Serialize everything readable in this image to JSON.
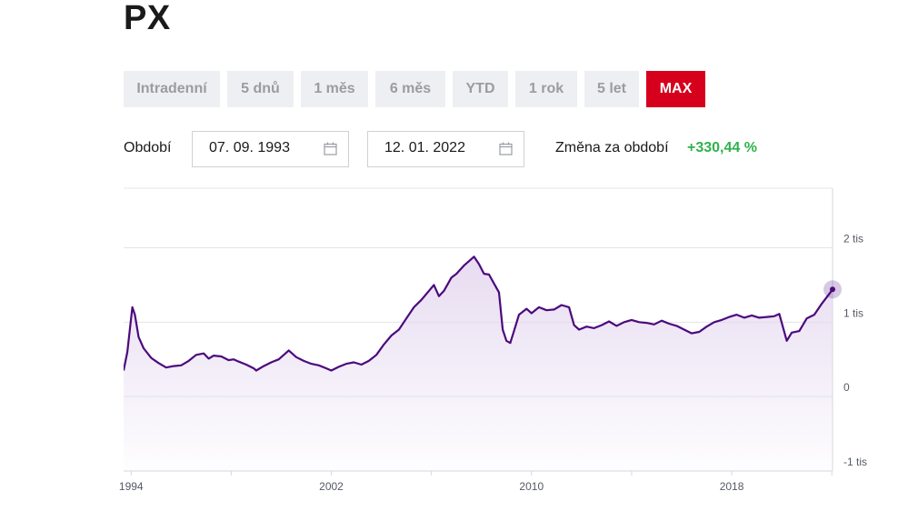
{
  "header": {
    "title": "PX"
  },
  "periods": [
    {
      "label": "Intradenní",
      "active": false
    },
    {
      "label": "5 dnů",
      "active": false
    },
    {
      "label": "1 měs",
      "active": false
    },
    {
      "label": "6 měs",
      "active": false
    },
    {
      "label": "YTD",
      "active": false
    },
    {
      "label": "1 rok",
      "active": false
    },
    {
      "label": "5 let",
      "active": false
    },
    {
      "label": "MAX",
      "active": true
    }
  ],
  "range": {
    "label": "Období",
    "from": "07. 09. 1993",
    "to": "12. 01. 2022",
    "change_label": "Změna za období",
    "change_value": "+330,44 %"
  },
  "colors": {
    "active_period": "#d6001c",
    "line": "#4b0a7d",
    "area": "#e6daf0",
    "positive_change": "#2fb24c"
  },
  "icons": {
    "date_picker": "calendar-icon"
  },
  "chart_data": {
    "type": "area",
    "title": "",
    "xlabel": "",
    "ylabel": "",
    "x_ticks": [
      "1994",
      "2002",
      "2010",
      "2018"
    ],
    "y_ticks": [
      "-1 tis",
      "0",
      "1 tis",
      "2 tis"
    ],
    "y_tick_values": [
      -1000,
      0,
      1000,
      2000
    ],
    "ylim": [
      -1000,
      2800
    ],
    "xlim": [
      1993.7,
      2022.03
    ],
    "grid": true,
    "series": [
      {
        "points": [
          [
            1993.7,
            350
          ],
          [
            1993.85,
            600
          ],
          [
            1994.05,
            1200
          ],
          [
            1994.15,
            1100
          ],
          [
            1994.3,
            800
          ],
          [
            1994.5,
            650
          ],
          [
            1994.8,
            520
          ],
          [
            1995.1,
            450
          ],
          [
            1995.4,
            390
          ],
          [
            1995.7,
            410
          ],
          [
            1996.0,
            420
          ],
          [
            1996.3,
            480
          ],
          [
            1996.6,
            560
          ],
          [
            1996.9,
            580
          ],
          [
            1997.1,
            510
          ],
          [
            1997.3,
            550
          ],
          [
            1997.6,
            540
          ],
          [
            1997.9,
            490
          ],
          [
            1998.1,
            500
          ],
          [
            1998.3,
            470
          ],
          [
            1998.6,
            430
          ],
          [
            1998.9,
            380
          ],
          [
            1999.0,
            350
          ],
          [
            1999.3,
            410
          ],
          [
            1999.6,
            460
          ],
          [
            1999.9,
            500
          ],
          [
            2000.1,
            560
          ],
          [
            2000.3,
            620
          ],
          [
            2000.6,
            530
          ],
          [
            2000.9,
            480
          ],
          [
            2001.2,
            440
          ],
          [
            2001.5,
            420
          ],
          [
            2001.8,
            380
          ],
          [
            2002.0,
            350
          ],
          [
            2002.3,
            400
          ],
          [
            2002.6,
            440
          ],
          [
            2002.9,
            460
          ],
          [
            2003.2,
            430
          ],
          [
            2003.5,
            480
          ],
          [
            2003.8,
            560
          ],
          [
            2004.1,
            700
          ],
          [
            2004.4,
            820
          ],
          [
            2004.7,
            900
          ],
          [
            2005.0,
            1050
          ],
          [
            2005.3,
            1200
          ],
          [
            2005.6,
            1300
          ],
          [
            2005.9,
            1420
          ],
          [
            2006.1,
            1500
          ],
          [
            2006.3,
            1350
          ],
          [
            2006.5,
            1420
          ],
          [
            2006.8,
            1600
          ],
          [
            2007.0,
            1650
          ],
          [
            2007.3,
            1760
          ],
          [
            2007.5,
            1820
          ],
          [
            2007.7,
            1880
          ],
          [
            2007.9,
            1780
          ],
          [
            2008.1,
            1650
          ],
          [
            2008.3,
            1640
          ],
          [
            2008.5,
            1520
          ],
          [
            2008.7,
            1400
          ],
          [
            2008.85,
            900
          ],
          [
            2009.0,
            750
          ],
          [
            2009.15,
            720
          ],
          [
            2009.3,
            880
          ],
          [
            2009.5,
            1100
          ],
          [
            2009.8,
            1180
          ],
          [
            2010.0,
            1120
          ],
          [
            2010.3,
            1200
          ],
          [
            2010.6,
            1160
          ],
          [
            2010.9,
            1170
          ],
          [
            2011.2,
            1230
          ],
          [
            2011.5,
            1200
          ],
          [
            2011.7,
            960
          ],
          [
            2011.9,
            900
          ],
          [
            2012.2,
            940
          ],
          [
            2012.5,
            920
          ],
          [
            2012.8,
            960
          ],
          [
            2013.1,
            1010
          ],
          [
            2013.4,
            950
          ],
          [
            2013.7,
            1000
          ],
          [
            2014.0,
            1030
          ],
          [
            2014.3,
            1000
          ],
          [
            2014.6,
            990
          ],
          [
            2014.9,
            970
          ],
          [
            2015.2,
            1020
          ],
          [
            2015.5,
            980
          ],
          [
            2015.8,
            950
          ],
          [
            2016.1,
            900
          ],
          [
            2016.4,
            850
          ],
          [
            2016.7,
            870
          ],
          [
            2017.0,
            940
          ],
          [
            2017.3,
            1000
          ],
          [
            2017.6,
            1030
          ],
          [
            2017.9,
            1070
          ],
          [
            2018.2,
            1100
          ],
          [
            2018.5,
            1060
          ],
          [
            2018.8,
            1090
          ],
          [
            2019.1,
            1060
          ],
          [
            2019.4,
            1070
          ],
          [
            2019.7,
            1080
          ],
          [
            2019.9,
            1110
          ],
          [
            2020.2,
            750
          ],
          [
            2020.4,
            860
          ],
          [
            2020.7,
            880
          ],
          [
            2021.0,
            1050
          ],
          [
            2021.3,
            1100
          ],
          [
            2021.6,
            1250
          ],
          [
            2021.9,
            1380
          ],
          [
            2022.03,
            1440
          ]
        ]
      }
    ]
  }
}
